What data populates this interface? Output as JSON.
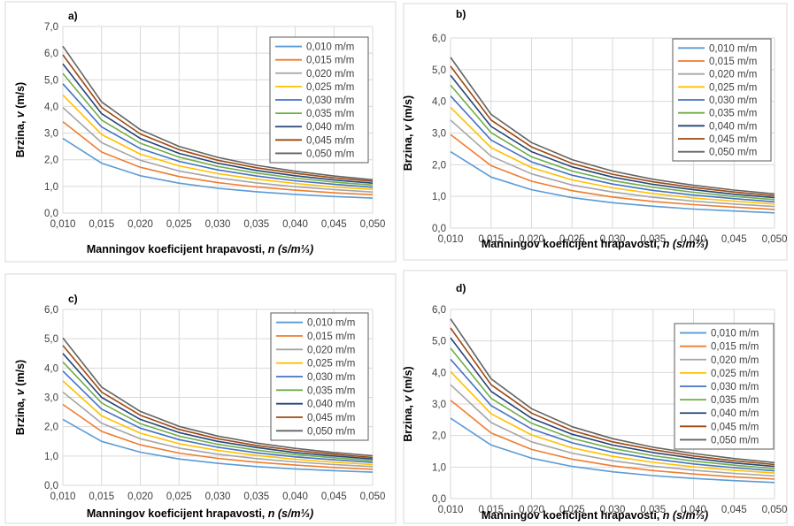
{
  "legend_entries": [
    "0,010 m/m",
    "0,015 m/m",
    "0,020 m/m",
    "0,025 m/m",
    "0,030 m/m",
    "0,035 m/m",
    "0,040 m/m",
    "0,045 m/m",
    "0,050 m/m"
  ],
  "colors": [
    "#5b9bd5",
    "#ed7d31",
    "#a5a5a5",
    "#ffc000",
    "#4472c4",
    "#70ad47",
    "#264478",
    "#9e480e",
    "#636363"
  ],
  "chart_data": [
    {
      "type": "line",
      "panel_label": "a)",
      "ylabel_prefix": "Brzina, ",
      "ylabel_var": "v",
      "ylabel_suffix": " (m/s)",
      "xlabel_prefix": "Manningov koeficijent hrapavosti, ",
      "xlabel_var": "n (s/m⅓)",
      "ylim": [
        0,
        7
      ],
      "yticks": [
        "0,0",
        "1,0",
        "2,0",
        "3,0",
        "4,0",
        "5,0",
        "6,0",
        "7,0"
      ],
      "xlim": [
        0.01,
        0.05
      ],
      "xticks": [
        "0,010",
        "0,015",
        "0,020",
        "0,025",
        "0,030",
        "0,035",
        "0,040",
        "0,045",
        "0,050"
      ],
      "x": [
        0.01,
        0.015,
        0.02,
        0.025,
        0.03,
        0.035,
        0.04,
        0.045,
        0.05
      ],
      "series": [
        {
          "name": "0,010 m/m",
          "values": [
            2.8,
            1.87,
            1.4,
            1.12,
            0.93,
            0.8,
            0.7,
            0.62,
            0.56
          ]
        },
        {
          "name": "0,015 m/m",
          "values": [
            3.43,
            2.29,
            1.72,
            1.37,
            1.14,
            0.98,
            0.86,
            0.76,
            0.69
          ]
        },
        {
          "name": "0,020 m/m",
          "values": [
            3.96,
            2.64,
            1.98,
            1.58,
            1.32,
            1.13,
            0.99,
            0.88,
            0.79
          ]
        },
        {
          "name": "0,025 m/m",
          "values": [
            4.43,
            2.95,
            2.21,
            1.77,
            1.48,
            1.27,
            1.11,
            0.98,
            0.89
          ]
        },
        {
          "name": "0,030 m/m",
          "values": [
            4.85,
            3.23,
            2.42,
            1.94,
            1.62,
            1.39,
            1.21,
            1.08,
            0.97
          ]
        },
        {
          "name": "0,035 m/m",
          "values": [
            5.24,
            3.49,
            2.62,
            2.1,
            1.75,
            1.5,
            1.31,
            1.16,
            1.05
          ]
        },
        {
          "name": "0,040 m/m",
          "values": [
            5.6,
            3.73,
            2.8,
            2.24,
            1.87,
            1.6,
            1.4,
            1.24,
            1.12
          ]
        },
        {
          "name": "0,045 m/m",
          "values": [
            5.94,
            3.96,
            2.97,
            2.38,
            1.98,
            1.7,
            1.49,
            1.32,
            1.19
          ]
        },
        {
          "name": "0,050 m/m",
          "values": [
            6.26,
            4.17,
            3.13,
            2.5,
            2.09,
            1.79,
            1.57,
            1.39,
            1.25
          ]
        }
      ]
    },
    {
      "type": "line",
      "panel_label": "b)",
      "ylabel_prefix": "Brzina, ",
      "ylabel_var": "v",
      "ylabel_suffix": " (m/s)",
      "xlabel_prefix": "Manningov koeficijent hrapavosti, ",
      "xlabel_var": "n (s/m⅓)",
      "ylim": [
        0,
        6
      ],
      "yticks": [
        "0,0",
        "1,0",
        "2,0",
        "3,0",
        "4,0",
        "5,0",
        "6,0"
      ],
      "xlim": [
        0.01,
        0.05
      ],
      "xticks": [
        "0,010",
        "0,015",
        "0,020",
        "0,025",
        "0,030",
        "0,035",
        "0,040",
        "0,045",
        "0,050"
      ],
      "x": [
        0.01,
        0.015,
        0.02,
        0.025,
        0.03,
        0.035,
        0.04,
        0.045,
        0.05
      ],
      "series": [
        {
          "name": "0,010 m/m",
          "values": [
            2.41,
            1.61,
            1.21,
            0.96,
            0.8,
            0.69,
            0.6,
            0.54,
            0.48
          ]
        },
        {
          "name": "0,015 m/m",
          "values": [
            2.95,
            1.97,
            1.48,
            1.18,
            0.98,
            0.84,
            0.74,
            0.66,
            0.59
          ]
        },
        {
          "name": "0,020 m/m",
          "values": [
            3.41,
            2.27,
            1.71,
            1.36,
            1.14,
            0.97,
            0.85,
            0.76,
            0.68
          ]
        },
        {
          "name": "0,025 m/m",
          "values": [
            3.81,
            2.54,
            1.91,
            1.52,
            1.27,
            1.09,
            0.95,
            0.85,
            0.76
          ]
        },
        {
          "name": "0,030 m/m",
          "values": [
            4.17,
            2.78,
            2.09,
            1.67,
            1.39,
            1.19,
            1.04,
            0.93,
            0.83
          ]
        },
        {
          "name": "0,035 m/m",
          "values": [
            4.51,
            3.01,
            2.25,
            1.8,
            1.5,
            1.29,
            1.13,
            1.0,
            0.9
          ]
        },
        {
          "name": "0,040 m/m",
          "values": [
            4.82,
            3.21,
            2.41,
            1.93,
            1.61,
            1.38,
            1.21,
            1.07,
            0.96
          ]
        },
        {
          "name": "0,045 m/m",
          "values": [
            5.11,
            3.41,
            2.56,
            2.04,
            1.7,
            1.46,
            1.28,
            1.14,
            1.02
          ]
        },
        {
          "name": "0,050 m/m",
          "values": [
            5.39,
            3.59,
            2.7,
            2.16,
            1.8,
            1.54,
            1.35,
            1.2,
            1.08
          ]
        }
      ]
    },
    {
      "type": "line",
      "panel_label": "c)",
      "ylabel_prefix": "Brzina, ",
      "ylabel_var": "v",
      "ylabel_suffix": " (m/s)",
      "xlabel_prefix": "Manningov koeficijent hrapavosti, ",
      "xlabel_var": "n (s/m⅓)",
      "ylim": [
        0,
        6
      ],
      "yticks": [
        "0,0",
        "1,0",
        "2,0",
        "3,0",
        "4,0",
        "5,0",
        "6,0"
      ],
      "xlim": [
        0.01,
        0.05
      ],
      "xticks": [
        "0,010",
        "0,015",
        "0,020",
        "0,025",
        "0,030",
        "0,035",
        "0,040",
        "0,045",
        "0,050"
      ],
      "x": [
        0.01,
        0.015,
        0.02,
        0.025,
        0.03,
        0.035,
        0.04,
        0.045,
        0.05
      ],
      "series": [
        {
          "name": "0,010 m/m",
          "values": [
            2.25,
            1.5,
            1.13,
            0.9,
            0.75,
            0.64,
            0.56,
            0.5,
            0.45
          ]
        },
        {
          "name": "0,015 m/m",
          "values": [
            2.76,
            1.84,
            1.38,
            1.1,
            0.92,
            0.79,
            0.69,
            0.61,
            0.55
          ]
        },
        {
          "name": "0,020 m/m",
          "values": [
            3.18,
            2.12,
            1.59,
            1.27,
            1.06,
            0.91,
            0.8,
            0.71,
            0.64
          ]
        },
        {
          "name": "0,025 m/m",
          "values": [
            3.56,
            2.37,
            1.78,
            1.42,
            1.19,
            1.02,
            0.89,
            0.79,
            0.71
          ]
        },
        {
          "name": "0,030 m/m",
          "values": [
            3.9,
            2.6,
            1.95,
            1.56,
            1.3,
            1.11,
            0.97,
            0.87,
            0.78
          ]
        },
        {
          "name": "0,035 m/m",
          "values": [
            4.21,
            2.81,
            2.1,
            1.68,
            1.4,
            1.2,
            1.05,
            0.94,
            0.84
          ]
        },
        {
          "name": "0,040 m/m",
          "values": [
            4.5,
            3.0,
            2.25,
            1.8,
            1.5,
            1.29,
            1.12,
            1.0,
            0.9
          ]
        },
        {
          "name": "0,045 m/m",
          "values": [
            4.77,
            3.18,
            2.39,
            1.91,
            1.59,
            1.36,
            1.19,
            1.06,
            0.95
          ]
        },
        {
          "name": "0,050 m/m",
          "values": [
            5.03,
            3.35,
            2.52,
            2.01,
            1.68,
            1.44,
            1.26,
            1.12,
            1.01
          ]
        }
      ]
    },
    {
      "type": "line",
      "panel_label": "d)",
      "ylabel_prefix": "Brzina, ",
      "ylabel_var": "v",
      "ylabel_suffix": " (m/s)",
      "xlabel_prefix": "Manningov koeficijent hrapavosti, ",
      "xlabel_var": "n (s/m⅓)",
      "ylim": [
        0,
        6
      ],
      "yticks": [
        "0,0",
        "1,0",
        "2,0",
        "3,0",
        "4,0",
        "5,0",
        "6,0"
      ],
      "xlim": [
        0.01,
        0.05
      ],
      "xticks": [
        "0,010",
        "0,015",
        "0,020",
        "0,025",
        "0,030",
        "0,035",
        "0,040",
        "0,045",
        "0,050"
      ],
      "x": [
        0.01,
        0.015,
        0.02,
        0.025,
        0.03,
        0.035,
        0.04,
        0.045,
        0.05
      ],
      "series": [
        {
          "name": "0,010 m/m",
          "values": [
            2.55,
            1.7,
            1.28,
            1.02,
            0.85,
            0.73,
            0.64,
            0.57,
            0.51
          ]
        },
        {
          "name": "0,015 m/m",
          "values": [
            3.12,
            2.08,
            1.56,
            1.25,
            1.04,
            0.89,
            0.78,
            0.69,
            0.62
          ]
        },
        {
          "name": "0,020 m/m",
          "values": [
            3.61,
            2.41,
            1.8,
            1.44,
            1.2,
            1.03,
            0.9,
            0.8,
            0.72
          ]
        },
        {
          "name": "0,025 m/m",
          "values": [
            4.03,
            2.69,
            2.02,
            1.61,
            1.34,
            1.15,
            1.01,
            0.9,
            0.81
          ]
        },
        {
          "name": "0,030 m/m",
          "values": [
            4.42,
            2.95,
            2.21,
            1.77,
            1.47,
            1.26,
            1.1,
            0.98,
            0.88
          ]
        },
        {
          "name": "0,035 m/m",
          "values": [
            4.77,
            3.18,
            2.39,
            1.91,
            1.59,
            1.36,
            1.19,
            1.06,
            0.95
          ]
        },
        {
          "name": "0,040 m/m",
          "values": [
            5.1,
            3.4,
            2.55,
            2.04,
            1.7,
            1.46,
            1.28,
            1.13,
            1.02
          ]
        },
        {
          "name": "0,045 m/m",
          "values": [
            5.41,
            3.61,
            2.71,
            2.16,
            1.8,
            1.55,
            1.35,
            1.2,
            1.08
          ]
        },
        {
          "name": "0,050 m/m",
          "values": [
            5.7,
            3.8,
            2.85,
            2.28,
            1.9,
            1.63,
            1.43,
            1.27,
            1.14
          ]
        }
      ]
    }
  ]
}
